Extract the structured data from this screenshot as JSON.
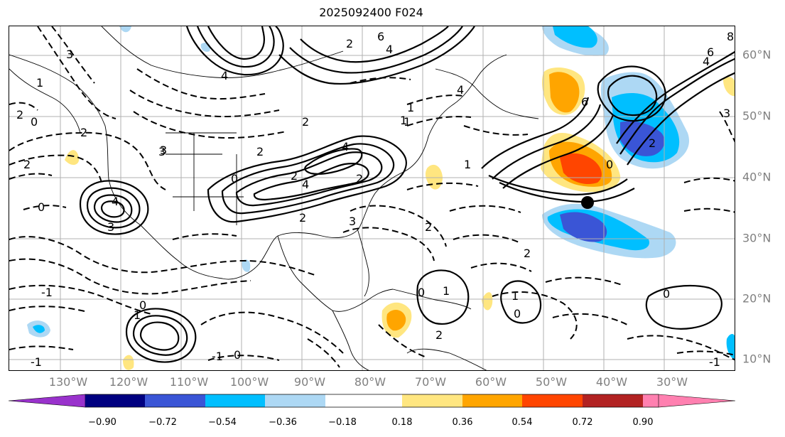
{
  "title": "2025092400 F024",
  "lon_labels": [
    "130°W",
    "120°W",
    "110°W",
    "100°W",
    "90°W",
    "80°W",
    "70°W",
    "60°W",
    "50°W",
    "40°W",
    "30°W"
  ],
  "lat_labels": [
    "60°N",
    "50°N",
    "40°N",
    "30°N",
    "20°N",
    "10°N"
  ],
  "colorbar": {
    "tick_labels": [
      "−0.90",
      "−0.72",
      "−0.54",
      "−0.36",
      "−0.18",
      "0.18",
      "0.36",
      "0.54",
      "0.72",
      "0.90"
    ],
    "colors": [
      "#9932cc",
      "#000080",
      "#3a55d6",
      "#00bfff",
      "#add8f4",
      "#ffffff",
      "#ffe680",
      "#ffa500",
      "#ff4500",
      "#b22222",
      "#ff80b0"
    ]
  },
  "contour_labels": [
    "6",
    "4",
    "8",
    "6",
    "4",
    "3",
    "4",
    "2",
    "6",
    "4",
    "2",
    "0",
    "1",
    "4",
    "2",
    "3",
    "2",
    "0",
    "3",
    "2",
    "4",
    "3",
    "2",
    "1",
    "2",
    "4",
    "3",
    "2",
    "1",
    "1",
    "0",
    "2",
    "2",
    "0",
    "2",
    "0",
    "1",
    "2",
    "3",
    "2",
    "1",
    "0",
    "0",
    "1",
    "0",
    "-1",
    "-1",
    "-1",
    "0",
    "1",
    "-1"
  ],
  "marker": {
    "name": "point",
    "color": "#000000"
  }
}
